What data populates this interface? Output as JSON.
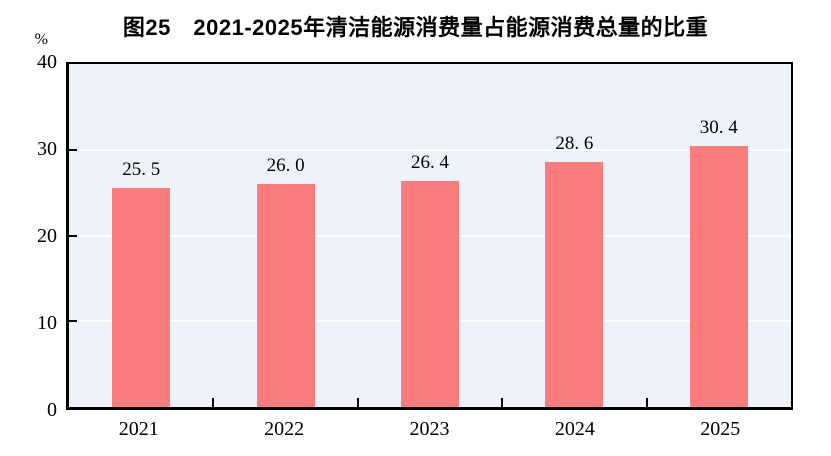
{
  "chart_data": {
    "type": "bar",
    "title": "图25　2021-2025年清洁能源消费量占能源消费总量的比重",
    "categories": [
      "2021",
      "2022",
      "2023",
      "2024",
      "2025"
    ],
    "values": [
      25.5,
      26.0,
      26.4,
      28.6,
      30.4
    ],
    "data_labels": [
      "25. 5",
      "26. 0",
      "26. 4",
      "28. 6",
      "30. 4"
    ],
    "xlabel": "",
    "ylabel": "%",
    "ylim": [
      0,
      40
    ],
    "yticks": [
      0,
      10,
      20,
      30,
      40
    ],
    "ytick_labels": [
      "0",
      "10",
      "20",
      "30",
      "40"
    ],
    "grid": "horizontal-white-on-tinted-panel",
    "legend": "none",
    "colors": {
      "bar": "#fa7d7d",
      "plot_background": "#edf3f8",
      "gridline": "#ffffff",
      "axis": "#000000",
      "text": "#000000"
    }
  }
}
